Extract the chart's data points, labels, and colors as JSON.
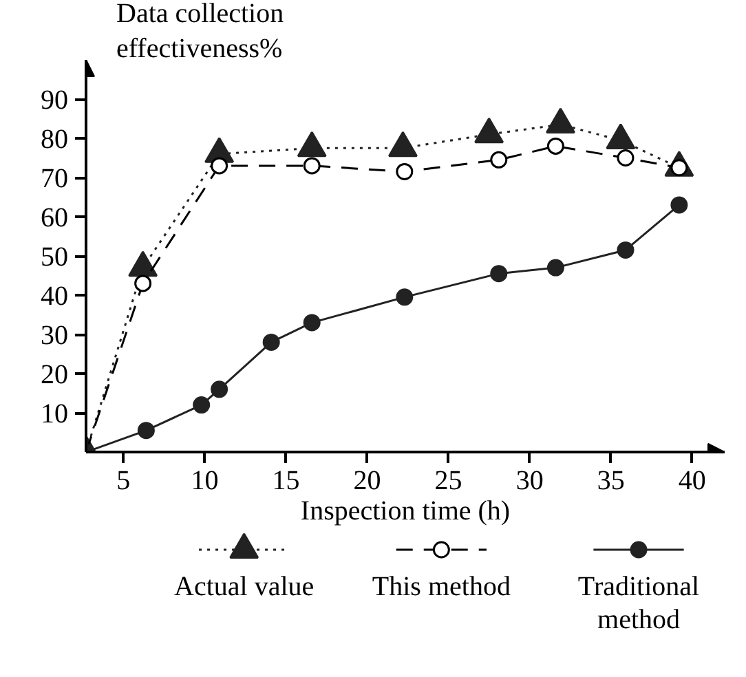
{
  "chart_data": {
    "type": "line",
    "xlabel": "Inspection time (h)",
    "ylabel": "Data collection effectiveness%",
    "xlim": [
      2.7,
      42
    ],
    "ylim": [
      0,
      100
    ],
    "xticks": [
      5,
      10,
      15,
      20,
      25,
      30,
      35,
      40
    ],
    "yticks": [
      10,
      20,
      30,
      40,
      50,
      60,
      70,
      80,
      90
    ],
    "grid": false,
    "legend": "bottom",
    "series": [
      {
        "name": "Actual value",
        "color": "#222222",
        "marker": "triangle",
        "line_style": "dotted",
        "x": [
          2.7,
          6.2,
          10.9,
          16.6,
          22.2,
          27.5,
          31.9,
          35.6,
          39.2
        ],
        "values": [
          0,
          47,
          76,
          77.5,
          77.5,
          81,
          83.5,
          79.5,
          72.5
        ]
      },
      {
        "name": "This method",
        "color": "#000000",
        "marker": "circle_open",
        "line_style": "dashed",
        "x": [
          2.7,
          6.2,
          10.9,
          16.6,
          22.3,
          28.1,
          31.6,
          35.9,
          39.2
        ],
        "values": [
          0,
          43,
          73,
          73,
          71.5,
          74.5,
          78,
          75,
          72.5
        ]
      },
      {
        "name": "Traditional method",
        "color": "#222222",
        "marker": "circle",
        "line_style": "solid",
        "x": [
          2.7,
          6.4,
          9.8,
          10.9,
          14.1,
          16.6,
          22.3,
          28.1,
          31.6,
          35.9,
          39.2
        ],
        "values": [
          0,
          5.5,
          12,
          16,
          28,
          33,
          39.5,
          45.5,
          47,
          51.5,
          63
        ]
      }
    ]
  }
}
